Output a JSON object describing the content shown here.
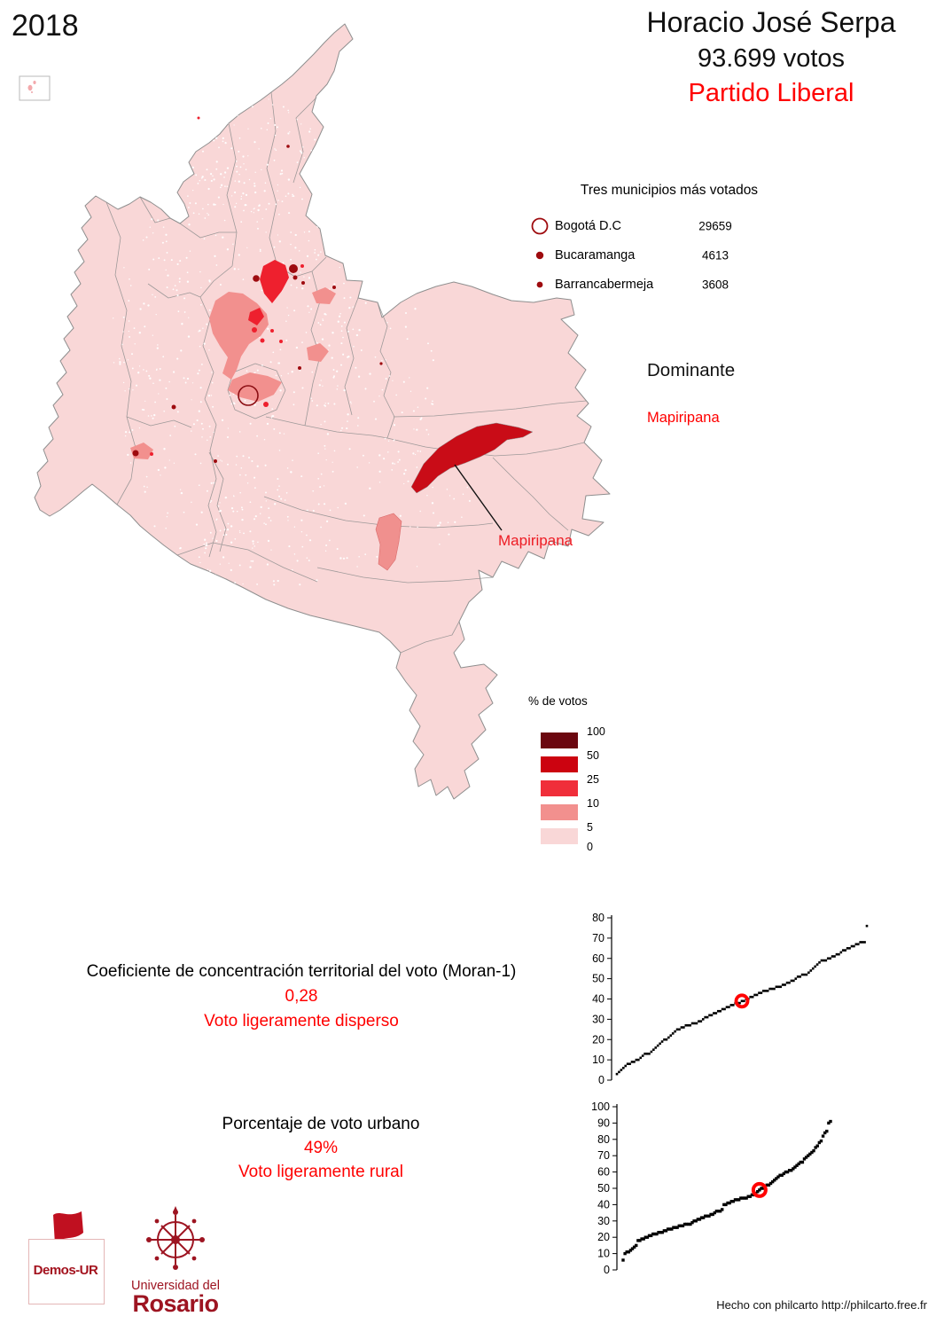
{
  "year": "2018",
  "title": {
    "name": "Horacio José Serpa",
    "votes": "93.699 votos",
    "party": "Partido Liberal"
  },
  "top_municipalities": {
    "title": "Tres municipios más votados",
    "items": [
      {
        "name": "Bogotá D.C",
        "value": "29659",
        "marker": "open-circle"
      },
      {
        "name": "Bucaramanga",
        "value": "4613",
        "marker": "dot-large"
      },
      {
        "name": "Barrancabermeja",
        "value": "3608",
        "marker": "dot-small"
      }
    ]
  },
  "dominante": {
    "label": "Dominante",
    "value": "Mapiripana"
  },
  "map": {
    "annotation": "Mapiripana",
    "base_color": "#f9d7d7",
    "border_color": "#8f8f8f",
    "dominant_region_color": "#c90c17"
  },
  "legend": {
    "title": "% de votos",
    "labels": [
      "100",
      "50",
      "25",
      "10",
      "5",
      "0"
    ],
    "colors": [
      "#6b070f",
      "#cc0310",
      "#f02e3a",
      "#f2908e",
      "#f9d7d7"
    ]
  },
  "moran": {
    "title": "Coeficiente de concentración territorial del voto (Moran-1)",
    "value": "0,28",
    "description": "Voto ligeramente disperso"
  },
  "urban": {
    "title": "Porcentaje de voto urbano",
    "value": "49%",
    "description": "Voto ligeramente rural"
  },
  "logos": {
    "demos": "Demos-UR",
    "university_line1": "Universidad del",
    "university_line2": "Rosario"
  },
  "footer": {
    "credit": "Hecho con philcarto http://philcarto.free.fr"
  },
  "chart_data": [
    {
      "type": "scatter",
      "name": "moran-rank-distribution",
      "title": "",
      "xlabel": "",
      "ylabel": "",
      "ylim": [
        0,
        80
      ],
      "yticks": [
        0,
        10,
        20,
        30,
        40,
        50,
        60,
        70,
        80
      ],
      "grid": false,
      "point_color": "#000000",
      "highlight": {
        "index": 58,
        "value": 39,
        "color": "#ff0000"
      },
      "values": [
        3,
        4,
        5,
        6,
        7,
        8,
        8,
        9,
        9,
        10,
        10,
        11,
        12,
        13,
        13,
        13,
        14,
        15,
        16,
        17,
        18,
        19,
        20,
        20,
        21,
        22,
        23,
        24,
        25,
        25,
        26,
        26,
        27,
        27,
        27,
        28,
        28,
        28,
        29,
        29,
        30,
        31,
        31,
        32,
        32,
        33,
        33,
        34,
        34,
        35,
        35,
        36,
        36,
        37,
        37,
        38,
        38,
        38,
        39,
        39,
        40,
        40,
        41,
        41,
        42,
        42,
        43,
        43,
        44,
        44,
        44,
        45,
        45,
        45,
        46,
        46,
        46,
        47,
        47,
        48,
        48,
        49,
        49,
        50,
        51,
        51,
        52,
        52,
        52,
        53,
        54,
        55,
        56,
        57,
        58,
        59,
        59,
        59,
        60,
        60,
        61,
        61,
        62,
        62,
        63,
        64,
        64,
        65,
        65,
        66,
        66,
        67,
        67,
        68,
        68,
        68,
        76
      ]
    },
    {
      "type": "scatter",
      "name": "urban-vote-rank-distribution",
      "title": "",
      "xlabel": "",
      "ylabel": "",
      "ylim": [
        0,
        100
      ],
      "yticks": [
        0,
        10,
        20,
        30,
        40,
        50,
        60,
        70,
        80,
        90,
        100
      ],
      "grid": false,
      "point_color": "#000000",
      "highlight": {
        "index": 73,
        "value": 49,
        "color": "#ff0000"
      },
      "values": [
        6,
        10,
        11,
        11,
        12,
        13,
        14,
        15,
        18,
        18,
        19,
        19,
        20,
        20,
        21,
        21,
        22,
        22,
        22,
        23,
        23,
        23,
        24,
        24,
        25,
        25,
        25,
        26,
        26,
        26,
        27,
        27,
        27,
        28,
        28,
        28,
        28,
        29,
        30,
        30,
        31,
        31,
        32,
        32,
        33,
        33,
        33,
        34,
        34,
        35,
        36,
        36,
        36,
        37,
        40,
        40,
        41,
        41,
        42,
        42,
        43,
        43,
        43,
        44,
        44,
        44,
        44,
        45,
        45,
        46,
        46,
        47,
        48,
        49,
        50,
        50,
        51,
        52,
        52,
        53,
        54,
        55,
        56,
        57,
        58,
        58,
        59,
        60,
        60,
        61,
        61,
        62,
        63,
        64,
        65,
        66,
        66,
        68,
        69,
        70,
        71,
        72,
        73,
        75,
        76,
        78,
        79,
        82,
        84,
        85,
        90,
        91
      ]
    }
  ]
}
